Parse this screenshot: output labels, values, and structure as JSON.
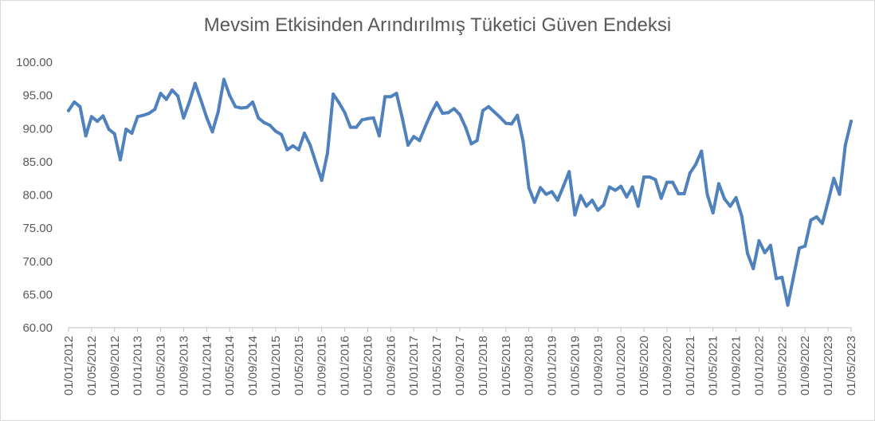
{
  "chart_data": {
    "type": "line",
    "title": "Mevsim Etkisinden Arındırılmış Tüketici Güven Endeksi",
    "xlabel": "",
    "ylabel": "",
    "ylim": [
      60,
      100
    ],
    "yticks": [
      "60.00",
      "65.00",
      "70.00",
      "75.00",
      "80.00",
      "85.00",
      "90.00",
      "95.00",
      "100.00"
    ],
    "grid": false,
    "legend": "none",
    "x_start": "01/01/2012",
    "x_tick_labels": [
      "01/01/2012",
      "01/05/2012",
      "01/09/2012",
      "01/01/2013",
      "01/05/2013",
      "01/09/2013",
      "01/01/2014",
      "01/05/2014",
      "01/09/2014",
      "01/01/2015",
      "01/05/2015",
      "01/09/2015",
      "01/01/2016",
      "01/05/2016",
      "01/09/2016",
      "01/01/2017",
      "01/05/2017",
      "01/09/2017",
      "01/01/2018",
      "01/05/2018",
      "01/09/2018",
      "01/01/2019",
      "01/05/2019",
      "01/09/2019",
      "01/01/2020",
      "01/05/2020",
      "01/09/2020",
      "01/01/2021",
      "01/05/2021",
      "01/09/2021",
      "01/01/2022",
      "01/05/2022",
      "01/09/2022",
      "01/01/2023",
      "01/05/2023"
    ],
    "line_color": "#4f81bd",
    "series": [
      {
        "name": "",
        "values": [
          92.7,
          94.0,
          93.3,
          88.9,
          91.8,
          91.1,
          91.9,
          89.9,
          89.2,
          85.3,
          89.9,
          89.3,
          91.8,
          92.0,
          92.3,
          92.9,
          95.3,
          94.4,
          95.8,
          94.9,
          91.6,
          94.0,
          96.8,
          94.3,
          91.7,
          89.5,
          92.5,
          97.4,
          95.0,
          93.3,
          93.1,
          93.2,
          94.0,
          91.6,
          90.9,
          90.5,
          89.6,
          89.1,
          86.8,
          87.4,
          86.8,
          89.3,
          87.5,
          84.8,
          82.2,
          86.3,
          95.2,
          93.9,
          92.4,
          90.2,
          90.2,
          91.3,
          91.5,
          91.6,
          88.9,
          94.8,
          94.8,
          95.3,
          91.6,
          87.5,
          88.8,
          88.2,
          90.3,
          92.3,
          93.9,
          92.3,
          92.4,
          93.0,
          92.1,
          90.2,
          87.7,
          88.2,
          92.7,
          93.3,
          92.5,
          91.7,
          90.8,
          90.7,
          92.0,
          88.1,
          81.1,
          78.9,
          81.1,
          80.1,
          80.5,
          79.2,
          81.3,
          83.5,
          77.0,
          79.9,
          78.3,
          79.2,
          77.7,
          78.5,
          81.2,
          80.7,
          81.3,
          79.7,
          81.2,
          78.3,
          82.7,
          82.7,
          82.3,
          79.5,
          81.9,
          81.9,
          80.2,
          80.2,
          83.3,
          84.6,
          86.6,
          80.1,
          77.3,
          81.7,
          79.4,
          78.3,
          79.6,
          76.8,
          71.2,
          68.9,
          73.1,
          71.3,
          72.4,
          67.4,
          67.6,
          63.4,
          67.7,
          72.0,
          72.3,
          76.2,
          76.7,
          75.7,
          79.0,
          82.5,
          80.1,
          87.5,
          91.1
        ]
      }
    ]
  }
}
